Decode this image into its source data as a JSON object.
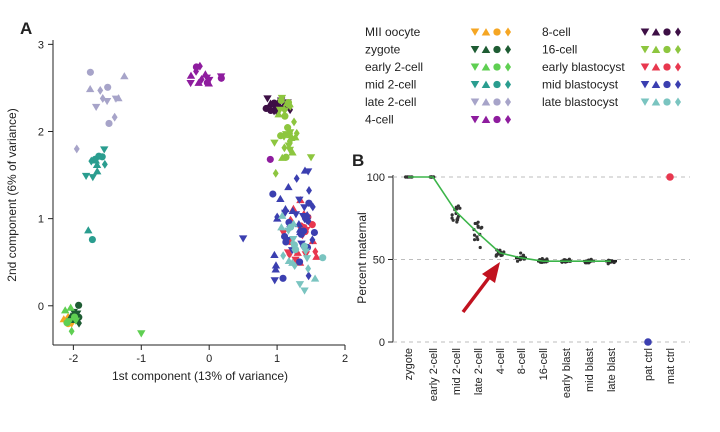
{
  "panels": {
    "a_label": "A",
    "b_label": "B"
  },
  "colors": {
    "mii": "#f5a623",
    "zygote": "#1e5c33",
    "early2": "#5fcf52",
    "mid2": "#2a9d8f",
    "late2": "#a7a4c9",
    "four": "#8e1c9e",
    "eight": "#3d0f45",
    "sixteen": "#8dc63f",
    "earlyblast": "#e8384f",
    "midblast": "#3b3fb0",
    "lateblast": "#7ac4c0",
    "fit_line": "#3cb54a",
    "arrow": "#c1121f",
    "pat_ctrl": "#3b3fb0",
    "mat_ctrl": "#e8384f"
  },
  "legend": [
    {
      "label": "MII oocyte",
      "key": "mii"
    },
    {
      "label": "zygote",
      "key": "zygote"
    },
    {
      "label": "early 2-cell",
      "key": "early2"
    },
    {
      "label": "mid 2-cell",
      "key": "mid2"
    },
    {
      "label": "late 2-cell",
      "key": "late2"
    },
    {
      "label": "4-cell",
      "key": "four"
    },
    {
      "label": "8-cell",
      "key": "eight"
    },
    {
      "label": "16-cell",
      "key": "sixteen"
    },
    {
      "label": "early blastocyst",
      "key": "earlyblast"
    },
    {
      "label": "mid blastocyst",
      "key": "midblast"
    },
    {
      "label": "late blastocyst",
      "key": "lateblast"
    }
  ],
  "chart_data": [
    {
      "type": "scatter",
      "panel": "A",
      "xlabel": "1st component (13% of variance)",
      "ylabel": "2nd component (6% of variance)",
      "xlim": [
        -2.3,
        2.0
      ],
      "ylim": [
        -0.45,
        3.05
      ],
      "xticks": [
        -2,
        -1,
        0,
        1,
        2
      ],
      "yticks": [
        0,
        1,
        2,
        3
      ],
      "clusters": [
        {
          "stage": "MII oocyte",
          "key": "mii",
          "cx": -2.05,
          "cy": -0.17,
          "sx": 0.05,
          "sy": 0.04,
          "n": 10
        },
        {
          "stage": "zygote",
          "key": "zygote",
          "cx": -1.97,
          "cy": -0.12,
          "sx": 0.06,
          "sy": 0.05,
          "n": 8
        },
        {
          "stage": "early 2-cell",
          "key": "early2",
          "cx": -2.0,
          "cy": -0.1,
          "sx": 0.07,
          "sy": 0.08,
          "n": 7
        },
        {
          "stage": "mid 2-cell",
          "key": "mid2",
          "cx": -1.65,
          "cy": 1.6,
          "sx": 0.07,
          "sy": 0.1,
          "n": 12
        },
        {
          "stage": "late 2-cell",
          "key": "late2",
          "cx": -1.45,
          "cy": 2.4,
          "sx": 0.14,
          "sy": 0.18,
          "n": 12
        },
        {
          "stage": "4-cell",
          "key": "four",
          "cx": 0.0,
          "cy": 2.64,
          "sx": 0.14,
          "sy": 0.05,
          "n": 14
        },
        {
          "stage": "8-cell",
          "key": "eight",
          "cx": 1.0,
          "cy": 2.32,
          "sx": 0.08,
          "sy": 0.06,
          "n": 18
        },
        {
          "stage": "16-cell",
          "key": "sixteen",
          "cx": 1.15,
          "cy": 2.05,
          "sx": 0.1,
          "sy": 0.16,
          "n": 30
        },
        {
          "stage": "early blastocyst",
          "key": "earlyblast",
          "cx": 1.35,
          "cy": 0.8,
          "sx": 0.13,
          "sy": 0.22,
          "n": 24
        },
        {
          "stage": "mid blastocyst",
          "key": "midblast",
          "cx": 1.3,
          "cy": 0.85,
          "sx": 0.15,
          "sy": 0.3,
          "n": 45
        },
        {
          "stage": "late blastocyst",
          "key": "lateblast",
          "cx": 1.35,
          "cy": 0.7,
          "sx": 0.14,
          "sy": 0.25,
          "n": 22
        }
      ],
      "outliers": [
        {
          "key": "early2",
          "x": -1.0,
          "y": -0.32
        },
        {
          "key": "mid2",
          "x": -1.78,
          "y": 0.87
        },
        {
          "key": "mid2",
          "x": -1.72,
          "y": 0.76
        },
        {
          "key": "late2",
          "x": -1.95,
          "y": 1.8
        },
        {
          "key": "midblast",
          "x": 0.5,
          "y": 0.77
        },
        {
          "key": "midblast",
          "x": 0.98,
          "y": 0.42
        },
        {
          "key": "four",
          "x": 0.9,
          "y": 1.68
        },
        {
          "key": "sixteen",
          "x": 0.98,
          "y": 1.52
        },
        {
          "key": "sixteen",
          "x": 1.5,
          "y": 1.7
        }
      ]
    },
    {
      "type": "line",
      "panel": "B",
      "ylabel": "Percent maternal",
      "ylim": [
        0,
        100
      ],
      "yticks": [
        0,
        50,
        100
      ],
      "categories": [
        "zygote",
        "early 2-cell",
        "mid 2-cell",
        "late 2-cell",
        "4-cell",
        "8-cell",
        "16-cell",
        "early blast",
        "mid blast",
        "late blast",
        "pat ctrl",
        "mat ctrl"
      ],
      "series": [
        {
          "values": [
            100,
            100,
            79,
            66,
            54,
            51,
            49,
            49,
            49,
            49,
            null,
            null
          ]
        }
      ],
      "controls": {
        "pat ctrl": 0,
        "mat ctrl": 100
      },
      "annotation": "arrow pointing at 4-cell"
    }
  ]
}
